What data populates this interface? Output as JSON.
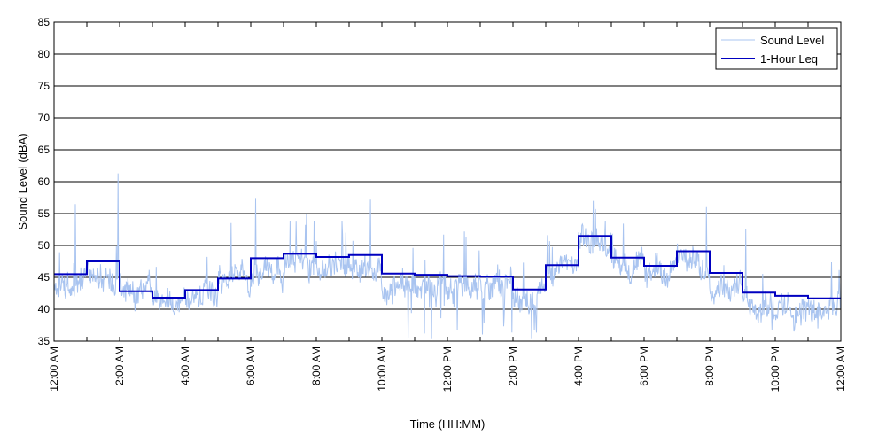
{
  "chart_data": {
    "type": "line",
    "title": "",
    "xlabel": "Time (HH:MM)",
    "ylabel": "Sound Level (dBA)",
    "ylim": [
      35,
      85
    ],
    "yticks": [
      35,
      40,
      45,
      50,
      55,
      60,
      65,
      70,
      75,
      80,
      85
    ],
    "xlim_hours": [
      0,
      24
    ],
    "xticks": [
      {
        "hour": 0,
        "label": "12:00 AM"
      },
      {
        "hour": 2,
        "label": "2:00 AM"
      },
      {
        "hour": 4,
        "label": "4:00 AM"
      },
      {
        "hour": 6,
        "label": "6:00 AM"
      },
      {
        "hour": 8,
        "label": "8:00 AM"
      },
      {
        "hour": 10,
        "label": "10:00 AM"
      },
      {
        "hour": 12,
        "label": "12:00 PM"
      },
      {
        "hour": 14,
        "label": "2:00 PM"
      },
      {
        "hour": 16,
        "label": "4:00 PM"
      },
      {
        "hour": 18,
        "label": "6:00 PM"
      },
      {
        "hour": 20,
        "label": "8:00 PM"
      },
      {
        "hour": 22,
        "label": "10:00 PM"
      },
      {
        "hour": 24,
        "label": "12:00 AM"
      }
    ],
    "grid": "horizontal",
    "legend_position": "top-right",
    "series": [
      {
        "name": "Sound Level",
        "color": "#a9c4f0",
        "hourly_typical": [
          44,
          45,
          43.5,
          41.5,
          41.5,
          44.5,
          46.5,
          47.5,
          47,
          47.5,
          43,
          43,
          43.5,
          43.5,
          42,
          45.5,
          50.5,
          47,
          46,
          47.5,
          44.5,
          41,
          40,
          40
        ],
        "peaks": [
          {
            "hour": 0.65,
            "value": 56.5
          },
          {
            "hour": 1.95,
            "value": 61.3
          },
          {
            "hour": 5.4,
            "value": 53.5
          },
          {
            "hour": 6.15,
            "value": 57.3
          },
          {
            "hour": 7.7,
            "value": 55
          },
          {
            "hour": 8.9,
            "value": 52
          },
          {
            "hour": 9.65,
            "value": 57.2
          },
          {
            "hour": 16.45,
            "value": 57
          },
          {
            "hour": 19.9,
            "value": 56
          },
          {
            "hour": 21.1,
            "value": 52.5
          }
        ],
        "dips": [
          {
            "hour": 10.8,
            "value": 35.5
          },
          {
            "hour": 11.3,
            "value": 36.2
          },
          {
            "hour": 12.3,
            "value": 36.8
          },
          {
            "hour": 21.9,
            "value": 36.8
          },
          {
            "hour": 23.3,
            "value": 37
          }
        ]
      },
      {
        "name": "1-Hour Leq",
        "color": "#0000c0",
        "step_values": [
          45.5,
          47.5,
          42.8,
          41.8,
          43,
          44.8,
          48,
          48.7,
          48.2,
          48.5,
          45.6,
          45.4,
          45.2,
          45.1,
          43.1,
          46.9,
          51.5,
          48.1,
          46.8,
          49.1,
          45.7,
          42.6,
          42.1,
          41.7
        ]
      }
    ]
  }
}
